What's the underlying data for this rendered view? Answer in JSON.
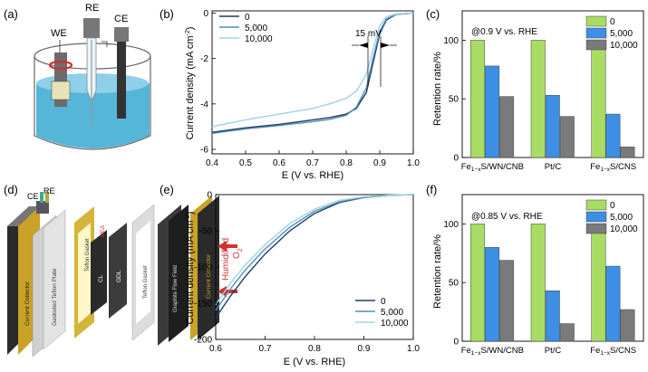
{
  "panels": {
    "a": {
      "label": "(a)",
      "electrodes": [
        "WE",
        "RE",
        "CE"
      ]
    },
    "d": {
      "label": "(d)",
      "top_labels": [
        "CE",
        "RE"
      ],
      "layers": [
        "Current Collector",
        "Gasketed Teflon Plate",
        "Teflon Gasket",
        "CL",
        "GDL",
        "MEA",
        "Teflon Gasket",
        "Graphite Flow Field",
        "Current Collector"
      ],
      "gas_label": "Humidified",
      "gas_formula": "O",
      "gas_sub": "2"
    }
  },
  "chart_data": [
    {
      "id": "b",
      "label": "(b)",
      "type": "line",
      "xlabel": "E (V vs. RHE)",
      "ylabel": "Current density (mA cm",
      "ylabel_sup": "-2",
      "ylabel_tail": ")",
      "xlim": [
        0.4,
        1.0
      ],
      "ylim": [
        -6.2,
        0.1
      ],
      "xticks": [
        "0.4",
        "0.5",
        "0.6",
        "0.7",
        "0.8",
        "0.9",
        "1.0"
      ],
      "yticks": [
        "0",
        "-2",
        "-4",
        "-6"
      ],
      "annotation": "15 mV",
      "legend_position": "top-left",
      "series": [
        {
          "name": "0",
          "color": "#1f3a66",
          "x": [
            0.4,
            0.5,
            0.6,
            0.7,
            0.75,
            0.8,
            0.83,
            0.86,
            0.88,
            0.9,
            0.92,
            0.95,
            1.0
          ],
          "y": [
            -5.25,
            -5.05,
            -4.9,
            -4.7,
            -4.6,
            -4.45,
            -4.2,
            -3.5,
            -2.2,
            -0.9,
            -0.3,
            -0.05,
            0.0
          ]
        },
        {
          "name": "5,000",
          "color": "#4f8fb5",
          "x": [
            0.4,
            0.5,
            0.6,
            0.7,
            0.75,
            0.8,
            0.83,
            0.86,
            0.88,
            0.9,
            0.92,
            0.95,
            1.0
          ],
          "y": [
            -5.3,
            -5.1,
            -4.95,
            -4.78,
            -4.68,
            -4.5,
            -4.15,
            -3.3,
            -2.0,
            -0.8,
            -0.25,
            -0.05,
            0.0
          ]
        },
        {
          "name": "10,000",
          "color": "#9fd3e6",
          "x": [
            0.4,
            0.5,
            0.6,
            0.7,
            0.75,
            0.8,
            0.83,
            0.86,
            0.88,
            0.9,
            0.92,
            0.95,
            1.0
          ],
          "y": [
            -5.0,
            -4.7,
            -4.45,
            -4.2,
            -4.0,
            -3.75,
            -3.45,
            -2.7,
            -1.6,
            -0.55,
            -0.15,
            -0.03,
            0.0
          ]
        }
      ]
    },
    {
      "id": "c",
      "label": "(c)",
      "type": "bar",
      "annotation": "@0.9 V vs. RHE",
      "ylabel": "Retention rate/%",
      "ylim": [
        0,
        125
      ],
      "yticks": [
        "0",
        "50",
        "100"
      ],
      "categories": [
        "Fe1−xS/WN/CNB",
        "Pt/C",
        "Fe1−xS/CNS"
      ],
      "category_labels": [
        {
          "pre": "Fe",
          "sub": "1−x",
          "post": "S/WN/CNB"
        },
        {
          "pre": "Pt/C",
          "sub": "",
          "post": ""
        },
        {
          "pre": "Fe",
          "sub": "1−x",
          "post": "S/CNS"
        }
      ],
      "legend_position": "top-right",
      "series": [
        {
          "name": "0",
          "color": "#a8dc64",
          "values": [
            100,
            100,
            100
          ]
        },
        {
          "name": "5,000",
          "color": "#3d8fe6",
          "values": [
            78,
            53,
            37
          ]
        },
        {
          "name": "10,000",
          "color": "#7a7a7a",
          "values": [
            52,
            35,
            9
          ]
        }
      ]
    },
    {
      "id": "e",
      "label": "(e)",
      "type": "line",
      "xlabel": "E (V vs. RHE)",
      "ylabel": "Current density (mA cm",
      "ylabel_sup": "-2",
      "ylabel_tail": ")",
      "xlim": [
        0.6,
        1.0
      ],
      "ylim": [
        -200,
        0
      ],
      "xticks": [
        "0.6",
        "0.7",
        "0.8",
        "0.9",
        "1.0"
      ],
      "yticks": [
        "0",
        "-50",
        "-100",
        "-150",
        "-200"
      ],
      "legend_position": "bottom-right",
      "series": [
        {
          "name": "0",
          "color": "#1f3a66",
          "x": [
            0.6,
            0.63,
            0.66,
            0.7,
            0.75,
            0.8,
            0.85,
            0.9,
            0.95,
            1.0
          ],
          "y": [
            -170,
            -140,
            -113,
            -82,
            -50,
            -26,
            -11,
            -4,
            -1,
            0
          ]
        },
        {
          "name": "5,000",
          "color": "#4f8fb5",
          "x": [
            0.6,
            0.63,
            0.66,
            0.7,
            0.75,
            0.8,
            0.85,
            0.9,
            0.95,
            1.0
          ],
          "y": [
            -160,
            -130,
            -104,
            -75,
            -45,
            -23,
            -10,
            -3.5,
            -1,
            0
          ]
        },
        {
          "name": "10,000",
          "color": "#9fd3e6",
          "x": [
            0.6,
            0.63,
            0.66,
            0.7,
            0.75,
            0.8,
            0.85,
            0.9,
            0.95,
            1.0
          ],
          "y": [
            -152,
            -122,
            -97,
            -69,
            -40,
            -20,
            -8,
            -3,
            -0.8,
            0
          ]
        }
      ]
    },
    {
      "id": "f",
      "label": "(f)",
      "type": "bar",
      "annotation": "@0.85 V vs. RHE",
      "ylabel": "Retention rate/%",
      "ylim": [
        0,
        125
      ],
      "yticks": [
        "0",
        "50",
        "100"
      ],
      "categories": [
        "Fe1−xS/WN/CNB",
        "Pt/C",
        "Fe1−xS/CNS"
      ],
      "category_labels": [
        {
          "pre": "Fe",
          "sub": "1−x",
          "post": "S/WN/CNB"
        },
        {
          "pre": "Pt/C",
          "sub": "",
          "post": ""
        },
        {
          "pre": "Fe",
          "sub": "1−x",
          "post": "S/CNS"
        }
      ],
      "legend_position": "top-right",
      "series": [
        {
          "name": "0",
          "color": "#a8dc64",
          "values": [
            100,
            100,
            100
          ]
        },
        {
          "name": "5,000",
          "color": "#3d8fe6",
          "values": [
            80,
            43,
            64
          ]
        },
        {
          "name": "10,000",
          "color": "#7a7a7a",
          "values": [
            69,
            15,
            27
          ]
        }
      ]
    }
  ]
}
